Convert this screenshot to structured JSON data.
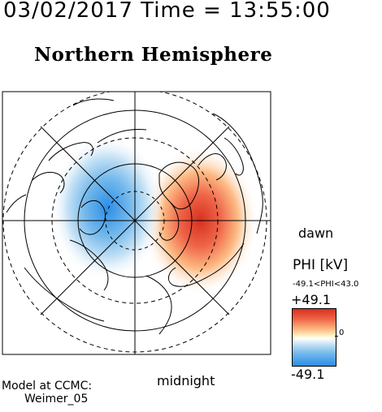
{
  "header": {
    "datetime": "03/02/2017 Time = 13:55:00",
    "title": "Northern Hemisphere"
  },
  "map": {
    "left_label": "dawn",
    "bottom_label": "midnight"
  },
  "colorbar": {
    "label": "PHI [kV]",
    "range_text": "-49.1<PHI<43.0",
    "max_label": "+49.1",
    "zero_label": "0",
    "min_label": "-49.1",
    "colors": {
      "positive": "#d7301f",
      "neutral": "#ffffff",
      "negative": "#2b8ee6"
    }
  },
  "footer": {
    "model_line": "Model at CCMC:",
    "model_name": "Weimer_05"
  }
}
